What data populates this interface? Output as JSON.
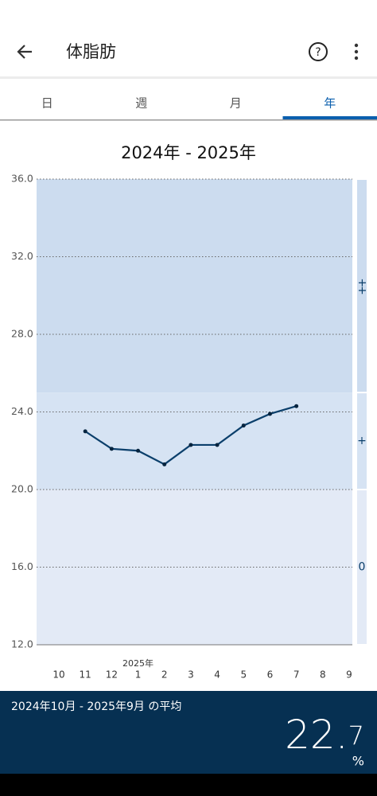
{
  "header": {
    "title": "体脂肪"
  },
  "tabs": {
    "items": [
      "日",
      "週",
      "月",
      "年"
    ],
    "selected": 3
  },
  "chart_data": {
    "type": "line",
    "title": "2024年 - 2025年",
    "categories": [
      "10",
      "11",
      "12",
      "1",
      "2",
      "3",
      "4",
      "5",
      "6",
      "7",
      "8",
      "9"
    ],
    "annotation": "2025年",
    "series": [
      {
        "color": "#0b3f6b",
        "values": [
          null,
          23.0,
          22.1,
          22.0,
          21.3,
          22.3,
          22.3,
          23.3,
          23.9,
          24.3,
          null,
          null
        ]
      }
    ],
    "ylim": [
      12,
      36
    ],
    "yticks": [
      {
        "value": 12,
        "label": "12.0"
      },
      {
        "value": 16,
        "label": "16.0"
      },
      {
        "value": 20,
        "label": "20.0"
      },
      {
        "value": 24,
        "label": "24.0"
      },
      {
        "value": 28,
        "label": "28.0"
      },
      {
        "value": 32,
        "label": "32.0"
      },
      {
        "value": 36,
        "label": "36.0"
      }
    ],
    "bands": [
      {
        "from": 25,
        "to": 36,
        "label": "++",
        "color": "#ccdcef"
      },
      {
        "from": 20,
        "to": 25,
        "label": "+",
        "color": "#d6e3f3"
      },
      {
        "from": 12,
        "to": 20,
        "label": "0",
        "color": "#e3eaf6"
      }
    ],
    "grid": true
  },
  "footer": {
    "period": "2024年10月 - 2025年9月 の平均",
    "average": 22.7,
    "unit": "%"
  }
}
